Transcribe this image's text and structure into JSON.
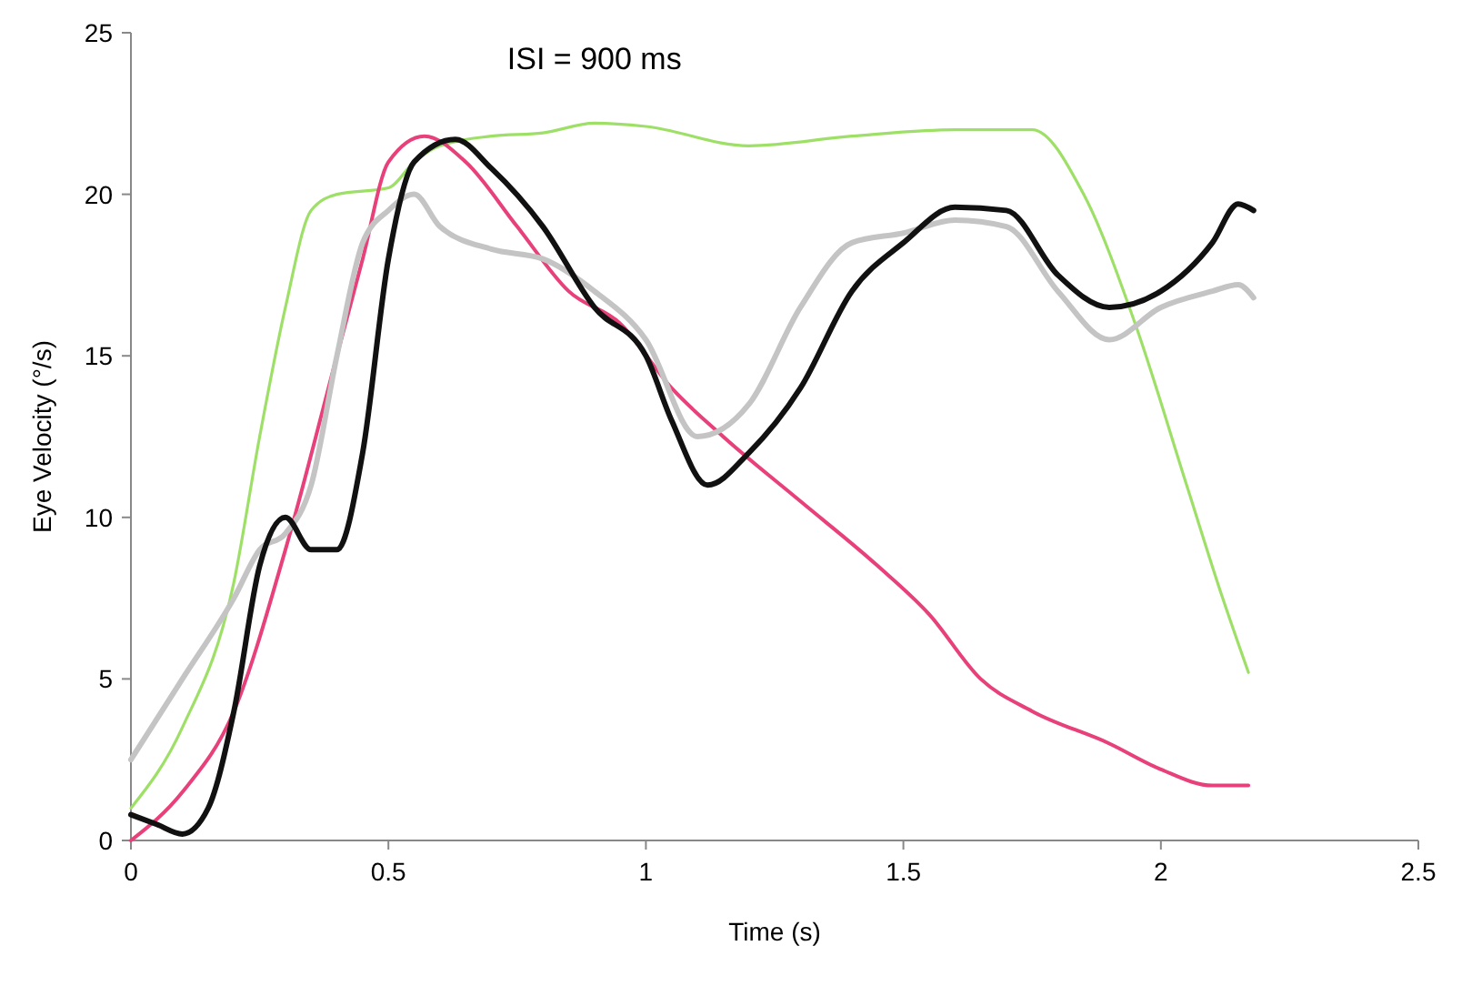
{
  "chart_data": {
    "type": "line",
    "title": "ISI = 900 ms",
    "xlabel": "Time (s)",
    "ylabel": "Eye Velocity (°/s)",
    "xlim": [
      0,
      2.5
    ],
    "xticks": [
      0,
      0.5,
      1,
      1.5,
      2,
      2.5
    ],
    "ylim": [
      0,
      25
    ],
    "yticks": [
      0,
      5,
      10,
      15,
      20,
      25
    ],
    "grid": false,
    "marker": "none",
    "line_style": "solid",
    "series": [
      {
        "color": "#9ee067",
        "x": [
          0,
          0.1,
          0.2,
          0.25,
          0.3,
          0.35,
          0.4,
          0.5,
          0.55,
          0.6,
          0.7,
          0.8,
          0.9,
          1.0,
          1.2,
          1.4,
          1.6,
          1.75,
          1.85,
          1.95,
          2.05,
          2.12,
          2.17
        ],
        "values": [
          1,
          3.5,
          8,
          12.5,
          16.5,
          19.5,
          20,
          20.2,
          21,
          21.5,
          21.8,
          21.9,
          22.2,
          22.1,
          21.5,
          21.8,
          22,
          22,
          20,
          16,
          11,
          7.5,
          5.2
        ]
      },
      {
        "color": "#e8407a",
        "x": [
          0,
          0.1,
          0.2,
          0.3,
          0.4,
          0.45,
          0.5,
          0.57,
          0.65,
          0.75,
          0.85,
          0.95,
          1.05,
          1.15,
          1.3,
          1.45,
          1.55,
          1.65,
          1.75,
          1.9,
          2.0,
          2.1,
          2.17
        ],
        "values": [
          0,
          1.5,
          4,
          9,
          15,
          18,
          21,
          21.8,
          21,
          19,
          17,
          16,
          14,
          12.5,
          10.5,
          8.5,
          7,
          5,
          4,
          3,
          2.2,
          1.7,
          1.7
        ]
      },
      {
        "color": "#c4c4c4",
        "x": [
          0,
          0.1,
          0.2,
          0.25,
          0.3,
          0.35,
          0.4,
          0.45,
          0.5,
          0.55,
          0.6,
          0.7,
          0.8,
          0.9,
          1.0,
          1.1,
          1.2,
          1.3,
          1.4,
          1.5,
          1.6,
          1.7,
          1.8,
          1.9,
          2.0,
          2.1,
          2.15,
          2.18
        ],
        "values": [
          2.5,
          5,
          7.5,
          9,
          9.5,
          11,
          15,
          18.5,
          19.5,
          20,
          19,
          18.3,
          18,
          17,
          15.5,
          12.5,
          13.5,
          16.5,
          18.5,
          18.8,
          19.2,
          19,
          17,
          15.5,
          16.5,
          17,
          17.2,
          16.8
        ]
      },
      {
        "color": "#111111",
        "x": [
          0,
          0.05,
          0.1,
          0.15,
          0.2,
          0.25,
          0.3,
          0.35,
          0.4,
          0.45,
          0.5,
          0.55,
          0.63,
          0.7,
          0.8,
          0.9,
          1.0,
          1.05,
          1.12,
          1.2,
          1.3,
          1.4,
          1.5,
          1.6,
          1.7,
          1.8,
          1.9,
          2.0,
          2.1,
          2.15,
          2.18
        ],
        "values": [
          0.8,
          0.5,
          0.2,
          1,
          4,
          8.5,
          10,
          9,
          9,
          12,
          18,
          21,
          21.7,
          20.8,
          19,
          16.5,
          15,
          13,
          11,
          12,
          14,
          17,
          18.5,
          19.6,
          19.5,
          17.5,
          16.5,
          17,
          18.5,
          19.7,
          19.5
        ]
      }
    ]
  }
}
